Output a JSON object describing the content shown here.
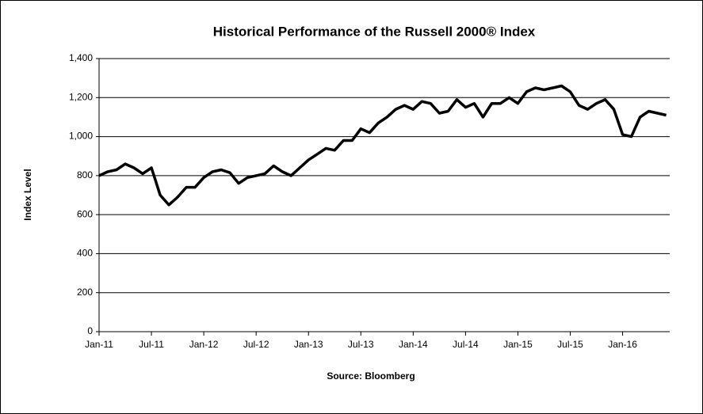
{
  "chart_data": {
    "type": "line",
    "title": "Historical Performance of the Russell 2000® Index",
    "ylabel": "Index Level",
    "source": "Source: Bloomberg",
    "categories": [
      "Jan-11",
      null,
      null,
      null,
      null,
      null,
      "Jul-11",
      null,
      null,
      null,
      null,
      null,
      "Jan-12",
      null,
      null,
      null,
      null,
      null,
      "Jul-12",
      null,
      null,
      null,
      null,
      null,
      "Jan-13",
      null,
      null,
      null,
      null,
      null,
      "Jul-13",
      null,
      null,
      null,
      null,
      null,
      "Jan-14",
      null,
      null,
      null,
      null,
      null,
      "Jul-14",
      null,
      null,
      null,
      null,
      null,
      "Jan-15",
      null,
      null,
      null,
      null,
      null,
      "Jul-15",
      null,
      null,
      null,
      null,
      null,
      "Jan-16",
      null,
      null,
      null,
      null,
      null
    ],
    "series": [
      {
        "color": "#000000",
        "values": [
          800,
          820,
          830,
          860,
          840,
          810,
          840,
          700,
          650,
          690,
          740,
          740,
          790,
          820,
          830,
          815,
          760,
          790,
          800,
          810,
          850,
          820,
          800,
          840,
          880,
          910,
          940,
          930,
          980,
          980,
          1040,
          1020,
          1070,
          1100,
          1140,
          1160,
          1140,
          1180,
          1170,
          1120,
          1130,
          1190,
          1150,
          1170,
          1100,
          1170,
          1170,
          1200,
          1170,
          1230,
          1250,
          1240,
          1250,
          1260,
          1230,
          1160,
          1140,
          1170,
          1190,
          1140,
          1010,
          1000,
          1100,
          1130,
          1120,
          1110
        ]
      }
    ],
    "ylim": [
      0,
      1400
    ],
    "yticks": [
      0,
      200,
      400,
      600,
      800,
      {
        "value": 1000,
        "label": "1,000"
      },
      {
        "value": 1200,
        "label": "1,200"
      },
      {
        "value": 1400,
        "label": "1,400"
      }
    ],
    "grid": true
  }
}
